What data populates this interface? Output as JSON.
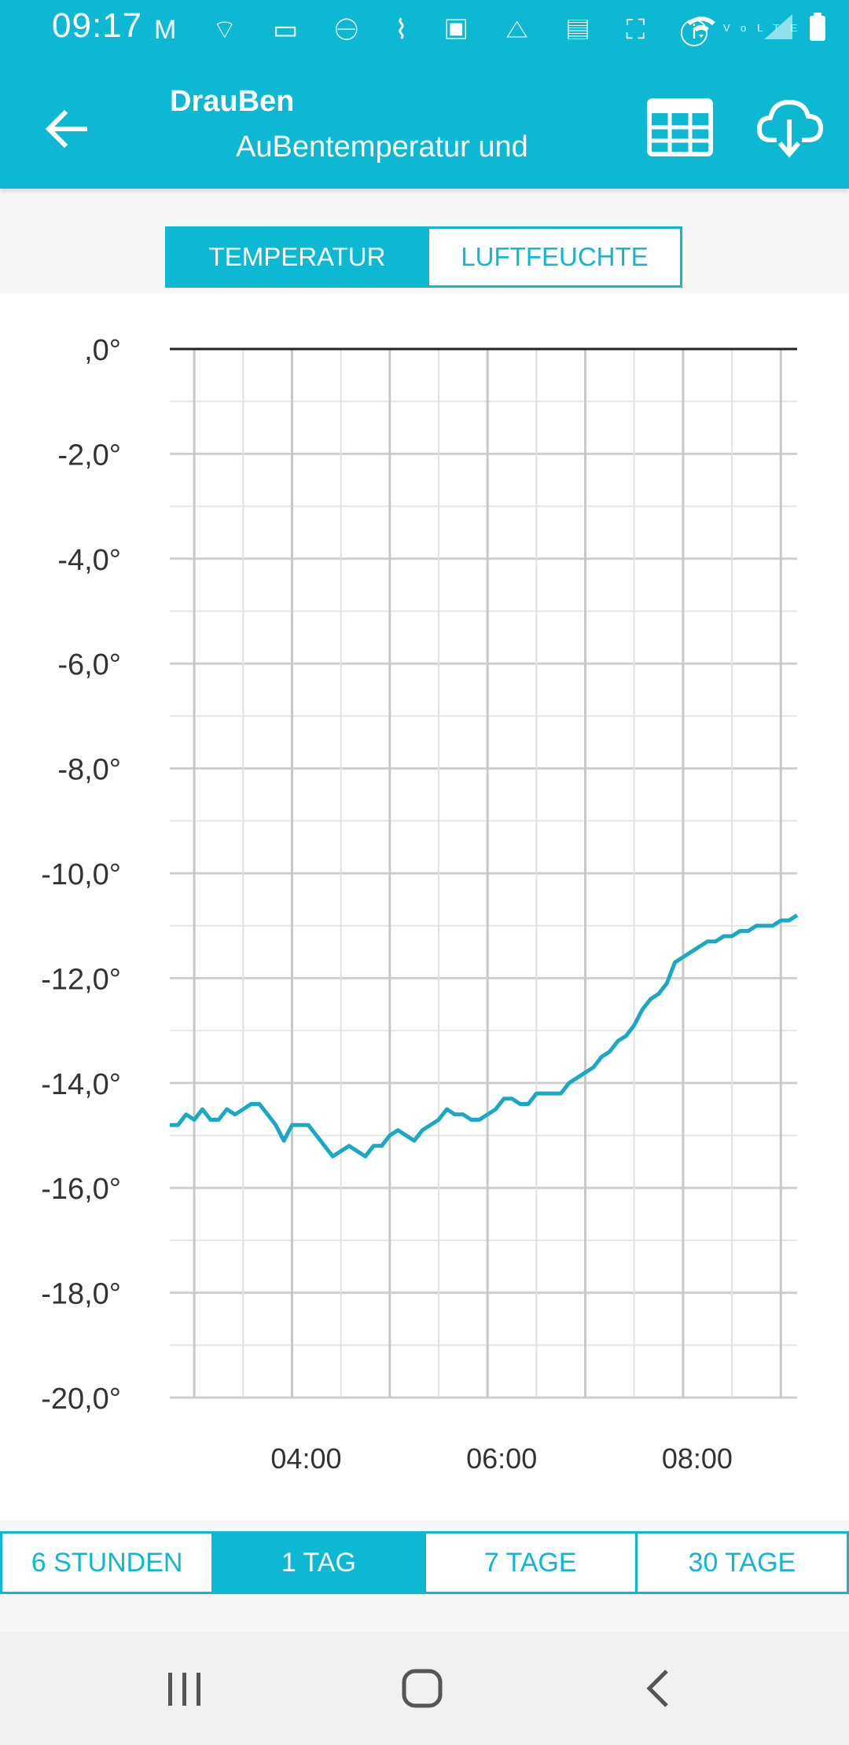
{
  "status": {
    "time": "09:17",
    "left_icons": "M ⌔ ▭ ⊖ ⌇ ▣ △ ▤ ⛶ ⓘ",
    "right_icons": "wifi VoLTE signal battery"
  },
  "header": {
    "title": "DrauBen",
    "subtitle": "AuBentemperatur und",
    "icons": [
      "back-arrow-icon",
      "table-icon",
      "cloud-download-icon"
    ]
  },
  "metric_tabs": [
    {
      "label": "TEMPERATUR",
      "active": true
    },
    {
      "label": "LUFTFEUCHTE",
      "active": false
    }
  ],
  "range_tabs": [
    {
      "label": "6 STUNDEN",
      "active": false
    },
    {
      "label": "1 TAG",
      "active": true
    },
    {
      "label": "7 TAGE",
      "active": false
    },
    {
      "label": "30 TAGE",
      "active": false
    }
  ],
  "colors": {
    "accent": "#0db9d2",
    "line": "#1aa9c4",
    "grid": "#d6d6d6",
    "zero_line": "#222222"
  },
  "chart_data": {
    "type": "line",
    "ylim": [
      -20,
      0
    ],
    "y_tick_labels": [
      ",0°",
      "-2,0°",
      "-4,0°",
      "-6,0°",
      "-8,0°",
      "-10,0°",
      "-12,0°",
      "-14,0°",
      "-16,0°",
      "-18,0°",
      "-20,0°"
    ],
    "y_ticks": [
      0,
      -2,
      -4,
      -6,
      -8,
      -10,
      -12,
      -14,
      -16,
      -18,
      -20
    ],
    "xlim": [
      "02:45",
      "09:10"
    ],
    "x_tick_labels": [
      "04:00",
      "06:00",
      "08:00"
    ],
    "x_ticks": [
      "04:00",
      "06:00",
      "08:00"
    ],
    "series": [
      {
        "x": [
          "02:45",
          "02:50",
          "02:55",
          "03:00",
          "03:05",
          "03:10",
          "03:15",
          "03:20",
          "03:25",
          "03:30",
          "03:35",
          "03:40",
          "03:45",
          "03:50",
          "03:55",
          "04:00",
          "04:05",
          "04:10",
          "04:15",
          "04:20",
          "04:25",
          "04:30",
          "04:35",
          "04:40",
          "04:45",
          "04:50",
          "04:55",
          "05:00",
          "05:05",
          "05:10",
          "05:15",
          "05:20",
          "05:25",
          "05:30",
          "05:35",
          "05:40",
          "05:45",
          "05:50",
          "05:55",
          "06:00",
          "06:05",
          "06:10",
          "06:15",
          "06:20",
          "06:25",
          "06:30",
          "06:35",
          "06:40",
          "06:45",
          "06:50",
          "06:55",
          "07:00",
          "07:05",
          "07:10",
          "07:15",
          "07:20",
          "07:25",
          "07:30",
          "07:35",
          "07:40",
          "07:45",
          "07:50",
          "07:55",
          "08:00",
          "08:05",
          "08:10",
          "08:15",
          "08:20",
          "08:25",
          "08:30",
          "08:35",
          "08:40",
          "08:45",
          "08:50",
          "08:55",
          "09:00",
          "09:05",
          "09:10"
        ],
        "values": [
          -14.8,
          -14.8,
          -14.6,
          -14.7,
          -14.5,
          -14.7,
          -14.7,
          -14.5,
          -14.6,
          -14.5,
          -14.4,
          -14.4,
          -14.6,
          -14.8,
          -15.1,
          -14.8,
          -14.8,
          -14.8,
          -15.0,
          -15.2,
          -15.4,
          -15.3,
          -15.2,
          -15.3,
          -15.4,
          -15.2,
          -15.2,
          -15.0,
          -14.9,
          -15.0,
          -15.1,
          -14.9,
          -14.8,
          -14.7,
          -14.5,
          -14.6,
          -14.6,
          -14.7,
          -14.7,
          -14.6,
          -14.5,
          -14.3,
          -14.3,
          -14.4,
          -14.4,
          -14.2,
          -14.2,
          -14.2,
          -14.2,
          -14.0,
          -13.9,
          -13.8,
          -13.7,
          -13.5,
          -13.4,
          -13.2,
          -13.1,
          -12.9,
          -12.6,
          -12.4,
          -12.3,
          -12.1,
          -11.7,
          -11.6,
          -11.5,
          -11.4,
          -11.3,
          -11.3,
          -11.2,
          -11.2,
          -11.1,
          -11.1,
          -11.0,
          -11.0,
          -11.0,
          -10.9,
          -10.9,
          -10.8
        ]
      }
    ]
  }
}
